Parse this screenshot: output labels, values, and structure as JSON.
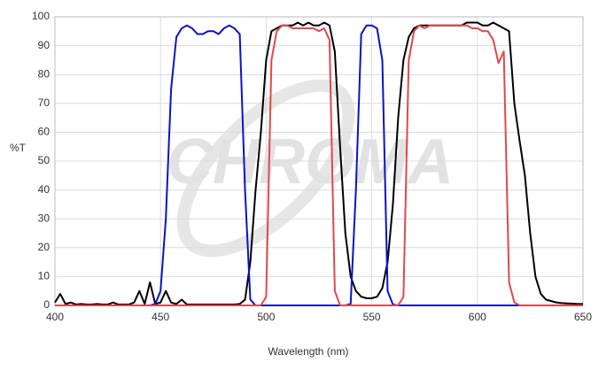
{
  "chart_data": {
    "type": "line",
    "watermark": "CHROMA",
    "xlabel": "Wavelength (nm)",
    "ylabel": "%T",
    "x": [
      400,
      402.5,
      405,
      407.5,
      410,
      412.5,
      415,
      417.5,
      420,
      422.5,
      425,
      427.5,
      430,
      432.5,
      435,
      437.5,
      440,
      442.5,
      445,
      447.5,
      450,
      452.5,
      455,
      457.5,
      460,
      462.5,
      465,
      467.5,
      470,
      472.5,
      475,
      477.5,
      480,
      482.5,
      485,
      487.5,
      490,
      492.5,
      495,
      497.5,
      500,
      502.5,
      505,
      507.5,
      510,
      512.5,
      515,
      517.5,
      520,
      522.5,
      525,
      527.5,
      530,
      532.5,
      535,
      537.5,
      540,
      542.5,
      545,
      547.5,
      550,
      552.5,
      555,
      557.5,
      560,
      562.5,
      565,
      567.5,
      570,
      572.5,
      575,
      577.5,
      580,
      582.5,
      585,
      587.5,
      590,
      592.5,
      595,
      597.5,
      600,
      602.5,
      605,
      607.5,
      610,
      612.5,
      615,
      617.5,
      620,
      622.5,
      625,
      627.5,
      630,
      632.5,
      635,
      637.5,
      640,
      642.5,
      645,
      647.5,
      650
    ],
    "series": [
      {
        "color": "#000000",
        "values": [
          1,
          4,
          0.5,
          1,
          0.3,
          0.5,
          0.3,
          0.3,
          0.5,
          0.3,
          0.3,
          1,
          0.3,
          0.3,
          0.3,
          1,
          5,
          0.5,
          8,
          0.5,
          1,
          5,
          1,
          0.5,
          2,
          0.3,
          0.3,
          0.3,
          0.3,
          0.3,
          0.3,
          0.3,
          0.3,
          0.3,
          0.3,
          0.5,
          2,
          15,
          40,
          60,
          85,
          95,
          96,
          97,
          97,
          97,
          98,
          97,
          98,
          97,
          97,
          98,
          97,
          88,
          55,
          25,
          10,
          5,
          3,
          2.5,
          2.5,
          3,
          6,
          15,
          35,
          65,
          85,
          93,
          96,
          97,
          97,
          97,
          97,
          97,
          97,
          97,
          97,
          97,
          98,
          98,
          98,
          97,
          97,
          98,
          97,
          96,
          95,
          70,
          57,
          45,
          25,
          10,
          4,
          2,
          1.5,
          1,
          0.8,
          0.7,
          0.6,
          0.5,
          0.5
        ]
      },
      {
        "color": "#0a12c8",
        "values": [
          0,
          0,
          0,
          0,
          0,
          0,
          0,
          0,
          0,
          0,
          0,
          0,
          0,
          0,
          0,
          0,
          0,
          0,
          0,
          0.5,
          5,
          30,
          75,
          93,
          96,
          97,
          96,
          94,
          94,
          95,
          95,
          94,
          96,
          97,
          96,
          94,
          40,
          2,
          0,
          0,
          0,
          0,
          0,
          0,
          0,
          0,
          0,
          0,
          0,
          0,
          0,
          0,
          0,
          0,
          0,
          0,
          0.5,
          40,
          94,
          97,
          97,
          96,
          85,
          5,
          0.3,
          0,
          0,
          0,
          0,
          0,
          0,
          0,
          0,
          0,
          0,
          0,
          0,
          0,
          0,
          0,
          0,
          0,
          0,
          0,
          0,
          0,
          0,
          0,
          0,
          0,
          0,
          0,
          0,
          0,
          0,
          0,
          0,
          0,
          0,
          0,
          0
        ]
      },
      {
        "color": "#e2474b",
        "values": [
          0,
          0,
          0,
          0,
          0,
          0,
          0,
          0,
          0,
          0,
          0,
          0,
          0,
          0,
          0,
          0,
          0,
          0,
          0,
          0,
          0,
          0,
          0,
          0,
          0,
          0,
          0,
          0,
          0,
          0,
          0,
          0,
          0,
          0,
          0,
          0,
          0,
          0,
          0,
          0,
          3,
          85,
          95,
          97,
          97,
          96,
          96,
          96,
          96,
          96,
          95,
          96,
          92,
          5,
          0,
          0,
          0,
          0,
          0,
          0,
          0,
          0,
          0,
          0,
          0,
          0,
          3,
          85,
          95,
          97,
          96,
          97,
          97,
          97,
          97,
          97,
          97,
          97,
          97,
          96,
          96,
          95,
          95,
          92,
          84,
          88,
          8,
          1,
          0,
          0,
          0,
          0,
          0,
          0,
          0,
          0,
          0,
          0,
          0,
          0,
          0
        ]
      }
    ],
    "xlim": [
      400,
      650
    ],
    "xticks": [
      400,
      450,
      500,
      550,
      600,
      650
    ],
    "ylim": [
      0,
      100
    ],
    "yticks": [
      0,
      10,
      20,
      30,
      40,
      50,
      60,
      70,
      80,
      90,
      100
    ],
    "grid": true
  }
}
